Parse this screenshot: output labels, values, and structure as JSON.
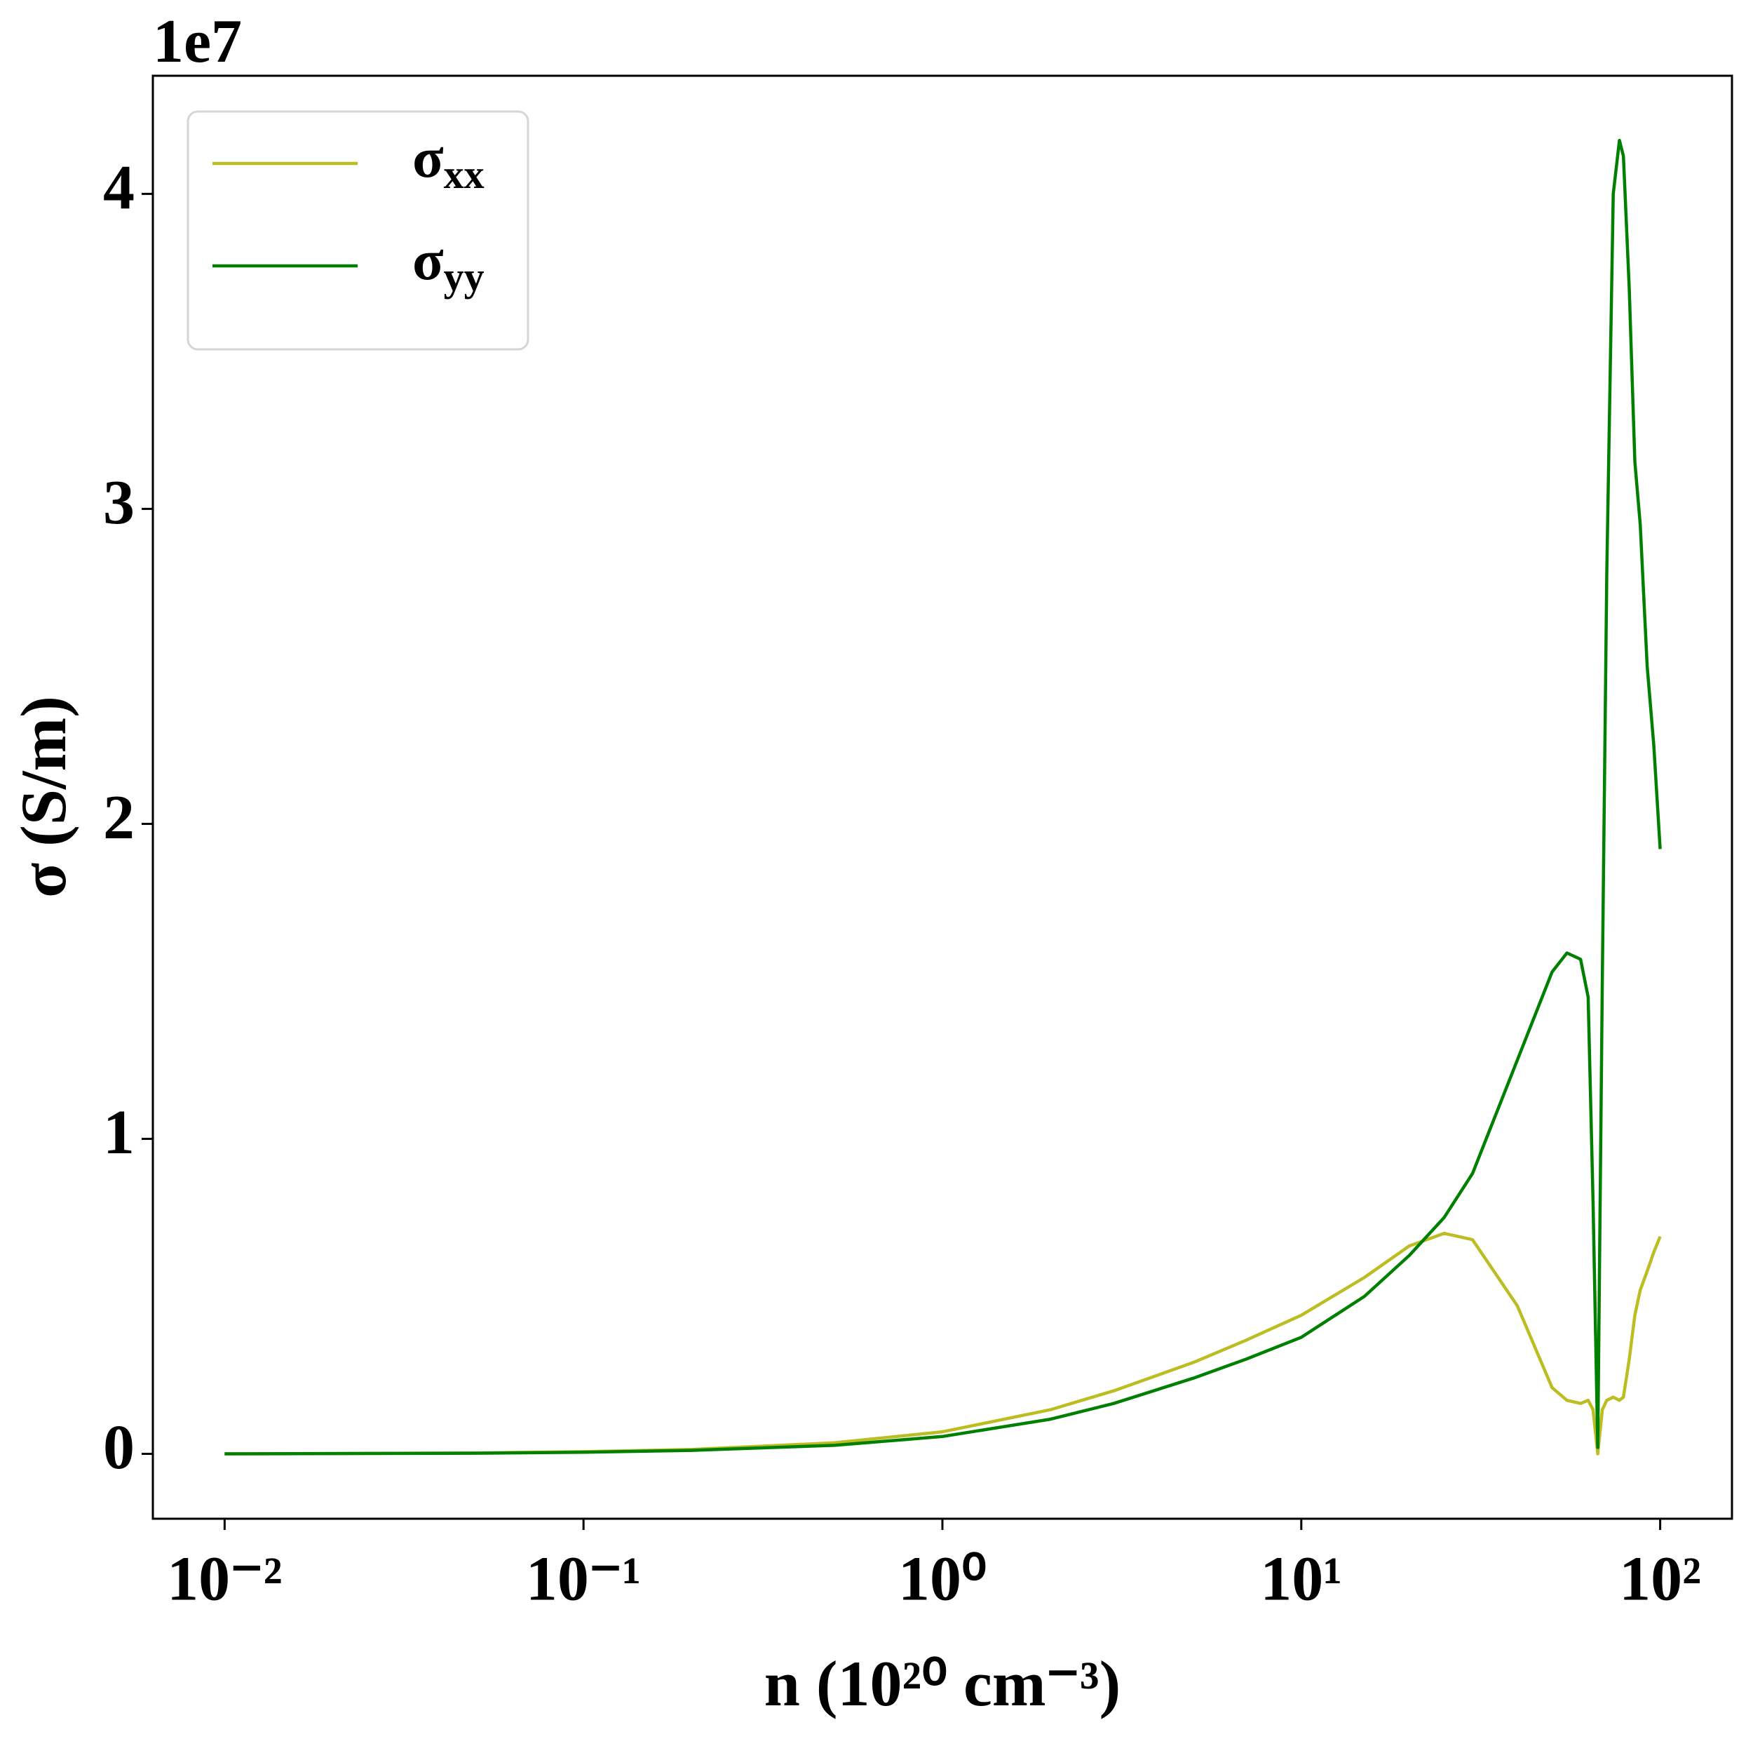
{
  "chart_data": {
    "type": "line",
    "xlabel": "n (10²⁰ cm⁻³)",
    "ylabel": "σ (S/m)",
    "offset_text": "1e7",
    "xscale": "log",
    "x": [
      0.01,
      0.02,
      0.05,
      0.1,
      0.2,
      0.5,
      1,
      2,
      3,
      5,
      7,
      10,
      15,
      20,
      25,
      30,
      40,
      50,
      55,
      60,
      63,
      65,
      67,
      69,
      71,
      74,
      77,
      79,
      82,
      85,
      88,
      92,
      96,
      100
    ],
    "series": [
      {
        "name": "σxx",
        "color": "#bcbd22",
        "values": [
          0,
          0.001,
          0.003,
          0.007,
          0.014,
          0.035,
          0.07,
          0.14,
          0.2,
          0.29,
          0.36,
          0.44,
          0.56,
          0.66,
          0.7,
          0.68,
          0.47,
          0.21,
          0.17,
          0.16,
          0.17,
          0.14,
          0,
          0.14,
          0.17,
          0.18,
          0.17,
          0.18,
          0.3,
          0.44,
          0.52,
          0.58,
          0.64,
          0.69
        ]
      },
      {
        "name": "σyy",
        "color": "#008000",
        "values": [
          0,
          0.001,
          0.002,
          0.005,
          0.011,
          0.027,
          0.055,
          0.11,
          0.16,
          0.24,
          0.3,
          0.37,
          0.5,
          0.63,
          0.75,
          0.89,
          1.25,
          1.53,
          1.59,
          1.57,
          1.45,
          0.8,
          0.02,
          1.5,
          2.8,
          4.0,
          4.17,
          4.12,
          3.7,
          3.15,
          2.95,
          2.5,
          2.25,
          1.92
        ]
      }
    ],
    "xlim": [
      0.00631,
      158.5
    ],
    "xticks": [
      {
        "value": 0.01,
        "label": "10⁻²"
      },
      {
        "value": 0.1,
        "label": "10⁻¹"
      },
      {
        "value": 1,
        "label": "10⁰"
      },
      {
        "value": 10,
        "label": "10¹"
      },
      {
        "value": 100,
        "label": "10²"
      }
    ],
    "ylim": [
      -0.206,
      4.375
    ],
    "yticks": [
      0,
      1,
      2,
      3,
      4
    ],
    "grid": false,
    "legend": "upper left"
  }
}
